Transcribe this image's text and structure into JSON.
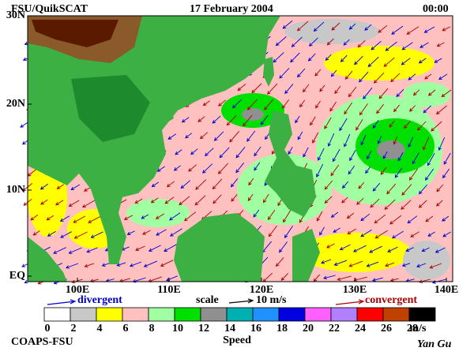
{
  "header": {
    "left": "FSU/QuikSCAT",
    "center": "17 February 2004",
    "right": "00:00"
  },
  "map": {
    "lat_labels": [
      "30N",
      "20N",
      "10N",
      "EQ"
    ],
    "lon_labels": [
      "100E",
      "110E",
      "120E",
      "130E",
      "140E"
    ]
  },
  "legend": {
    "divergent": "divergent",
    "scale": "scale",
    "scale_value": "10 m/s",
    "convergent": "convergent",
    "divergent_color": "#0000cc",
    "convergent_color": "#aa0000"
  },
  "colorbar": {
    "labels": [
      "0",
      "2",
      "4",
      "6",
      "8",
      "10",
      "12",
      "14",
      "16",
      "18",
      "20",
      "22",
      "24",
      "26",
      "28"
    ],
    "unit": "m/s",
    "title": "Speed",
    "colors": [
      "#ffffff",
      "#c8c8c8",
      "#ffff00",
      "#ffc0c0",
      "#a0ffa0",
      "#00e000",
      "#909090",
      "#00b0b0",
      "#2090ff",
      "#0000e0",
      "#ff60ff",
      "#b080ff",
      "#ff0000",
      "#c04000",
      "#000000"
    ]
  },
  "footer": {
    "left": "COAPS-FSU",
    "right": "Yan Gu"
  }
}
